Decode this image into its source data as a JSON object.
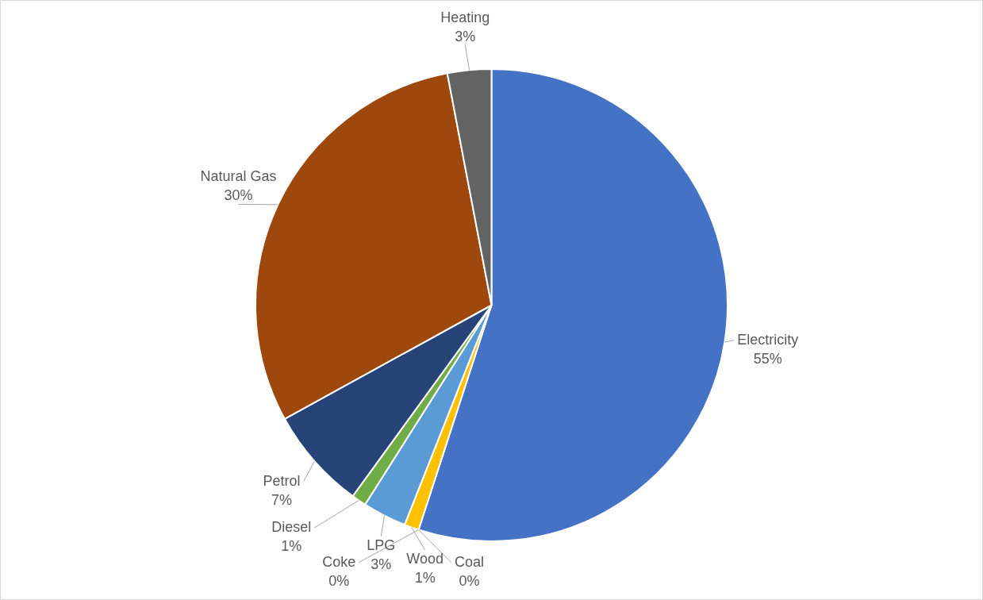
{
  "chart_data": {
    "type": "pie",
    "categories": [
      "Electricity",
      "Coal",
      "Coke",
      "Wood",
      "LPG",
      "Diesel",
      "Petrol",
      "Natural Gas",
      "Heating"
    ],
    "values": [
      55,
      0,
      0,
      1,
      3,
      1,
      7,
      30,
      3
    ],
    "value_labels": [
      "55%",
      "0%",
      "0%",
      "1%",
      "3%",
      "1%",
      "7%",
      "30%",
      "3%"
    ],
    "colors": [
      "#4472c4",
      "#ed7d31",
      "#a5a5a5",
      "#ffc000",
      "#5b9bd5",
      "#70ad47",
      "#264478",
      "#9e480e",
      "#636363"
    ],
    "legend": false
  }
}
